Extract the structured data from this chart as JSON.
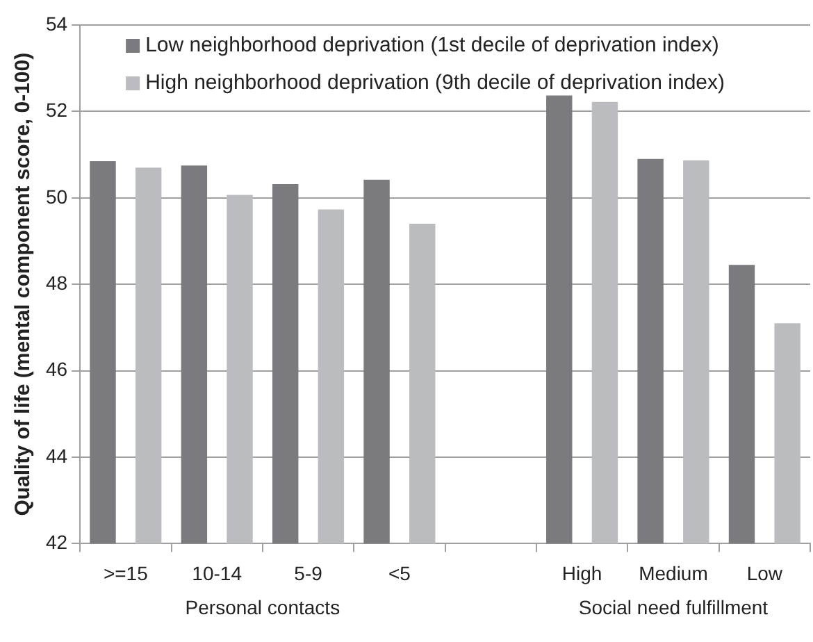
{
  "chart_data": {
    "type": "bar",
    "ylabel": "Quality of life (mental component score, 0-100)",
    "categories": [
      ">=15",
      "10-14",
      "5-9",
      "<5",
      null,
      "High",
      "Medium",
      "Low"
    ],
    "series": [
      {
        "name": "Low neighborhood deprivation (1st decile of deprivation index)",
        "color": "#7a7a7f",
        "values": [
          50.85,
          50.75,
          50.32,
          50.42,
          null,
          52.37,
          50.9,
          48.45
        ]
      },
      {
        "name": "High neighborhood deprivation (9th decile of deprivation index)",
        "color": "#bbbcc0",
        "values": [
          50.7,
          50.07,
          49.73,
          49.4,
          null,
          52.22,
          50.87,
          47.1
        ]
      }
    ],
    "ylim": [
      42,
      54
    ],
    "yticks": [
      42,
      44,
      46,
      48,
      50,
      52,
      54
    ],
    "grid": "y",
    "legend": "top left",
    "annotations": [
      "Personal contacts",
      "Social need fulfillment"
    ]
  }
}
